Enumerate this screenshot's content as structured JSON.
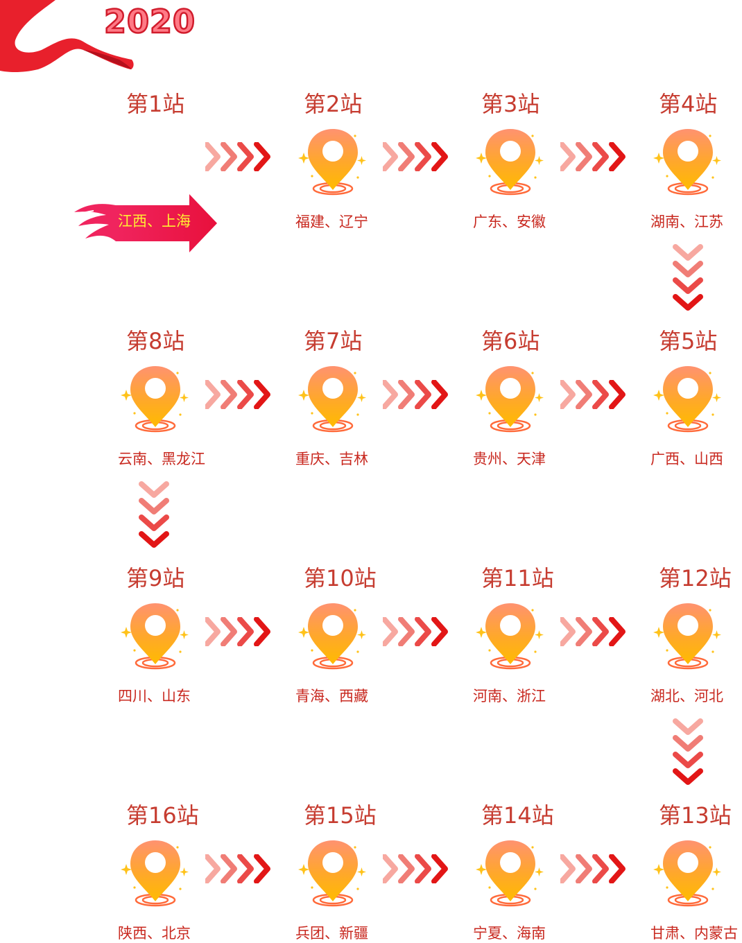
{
  "year": "2020",
  "start_label": "江西、上海",
  "colors": {
    "title": "#c63c30",
    "province": "#c8281f",
    "start_label": "#ffee33",
    "ribbon": "#e8202c",
    "pin_top": "#ff9270",
    "pin_bottom": "#ffbb00"
  },
  "icons": {
    "pin": "map-pin-icon",
    "arrow": "chevron-arrow-icon",
    "start": "flame-arrow-icon",
    "ribbon": "ribbon-icon"
  },
  "stations": [
    {
      "title": "第1站",
      "provinces": ""
    },
    {
      "title": "第2站",
      "provinces": "福建、辽宁"
    },
    {
      "title": "第3站",
      "provinces": "广东、安徽"
    },
    {
      "title": "第4站",
      "provinces": "湖南、江苏"
    },
    {
      "title": "第5站",
      "provinces": "广西、山西"
    },
    {
      "title": "第6站",
      "provinces": "贵州、天津"
    },
    {
      "title": "第7站",
      "provinces": "重庆、吉林"
    },
    {
      "title": "第8站",
      "provinces": "云南、黑龙江"
    },
    {
      "title": "第9站",
      "provinces": "四川、山东"
    },
    {
      "title": "第10站",
      "provinces": "青海、西藏"
    },
    {
      "title": "第11站",
      "provinces": "河南、浙江"
    },
    {
      "title": "第12站",
      "provinces": "湖北、河北"
    },
    {
      "title": "第13站",
      "provinces": "甘肃、内蒙古"
    },
    {
      "title": "第14站",
      "provinces": "宁夏、海南"
    },
    {
      "title": "第15站",
      "provinces": "兵团、新疆"
    },
    {
      "title": "第16站",
      "provinces": "陕西、北京"
    }
  ]
}
